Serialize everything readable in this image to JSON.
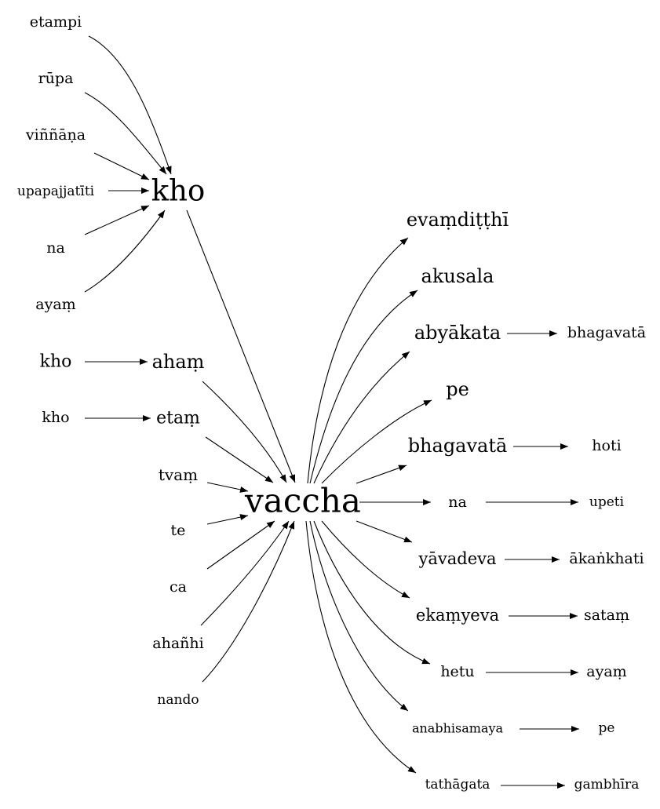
{
  "graph": {
    "colors": {
      "ink": "#000000",
      "background": "#ffffff"
    },
    "nodes": {
      "etampi": "etampi",
      "rupa": "rūpa",
      "vinnana": "viññāṇa",
      "upapajjatiti": "upapajjatīti",
      "na_left": "na",
      "ayam_left": "ayaṃ",
      "kho_hub": "kho",
      "kho_1": "kho",
      "aham": "ahaṃ",
      "kho_2": "kho",
      "etam": "etaṃ",
      "tvam": "tvaṃ",
      "te": "te",
      "ca": "ca",
      "ahanhi": "ahañhi",
      "nando": "nando",
      "vaccha": "vaccha",
      "evamditthi": "evaṃdiṭṭhī",
      "akusala": "akusala",
      "abyakata": "abyākata",
      "bhagavata_1": "bhagavatā",
      "pe_1": "pe",
      "bhagavata_2": "bhagavatā",
      "hoti": "hoti",
      "na_right": "na",
      "upeti": "upeti",
      "yavadeva": "yāvadeva",
      "akankhati": "ākaṅkhati",
      "ekamyeva": "ekaṃyeva",
      "satam": "sataṃ",
      "hetu": "hetu",
      "ayam_right": "ayaṃ",
      "anabhisamaya": "anabhisamaya",
      "pe_2": "pe",
      "tathagata": "tathāgata",
      "gambhira": "gambhīra"
    },
    "edges": [
      [
        "etampi",
        "kho_hub"
      ],
      [
        "rupa",
        "kho_hub"
      ],
      [
        "vinnana",
        "kho_hub"
      ],
      [
        "upapajjatiti",
        "kho_hub"
      ],
      [
        "na_left",
        "kho_hub"
      ],
      [
        "ayam_left",
        "kho_hub"
      ],
      [
        "kho_hub",
        "vaccha"
      ],
      [
        "kho_1",
        "aham"
      ],
      [
        "aham",
        "vaccha"
      ],
      [
        "kho_2",
        "etam"
      ],
      [
        "etam",
        "vaccha"
      ],
      [
        "tvam",
        "vaccha"
      ],
      [
        "te",
        "vaccha"
      ],
      [
        "ca",
        "vaccha"
      ],
      [
        "ahanhi",
        "vaccha"
      ],
      [
        "nando",
        "vaccha"
      ],
      [
        "vaccha",
        "evamditthi"
      ],
      [
        "vaccha",
        "akusala"
      ],
      [
        "vaccha",
        "abyakata"
      ],
      [
        "abyakata",
        "bhagavata_1"
      ],
      [
        "vaccha",
        "pe_1"
      ],
      [
        "vaccha",
        "bhagavata_2"
      ],
      [
        "bhagavata_2",
        "hoti"
      ],
      [
        "vaccha",
        "na_right"
      ],
      [
        "na_right",
        "upeti"
      ],
      [
        "vaccha",
        "yavadeva"
      ],
      [
        "yavadeva",
        "akankhati"
      ],
      [
        "vaccha",
        "ekamyeva"
      ],
      [
        "ekamyeva",
        "satam"
      ],
      [
        "vaccha",
        "hetu"
      ],
      [
        "hetu",
        "ayam_right"
      ],
      [
        "vaccha",
        "anabhisamaya"
      ],
      [
        "anabhisamaya",
        "pe_2"
      ],
      [
        "vaccha",
        "tathagata"
      ],
      [
        "tathagata",
        "gambhira"
      ]
    ]
  }
}
